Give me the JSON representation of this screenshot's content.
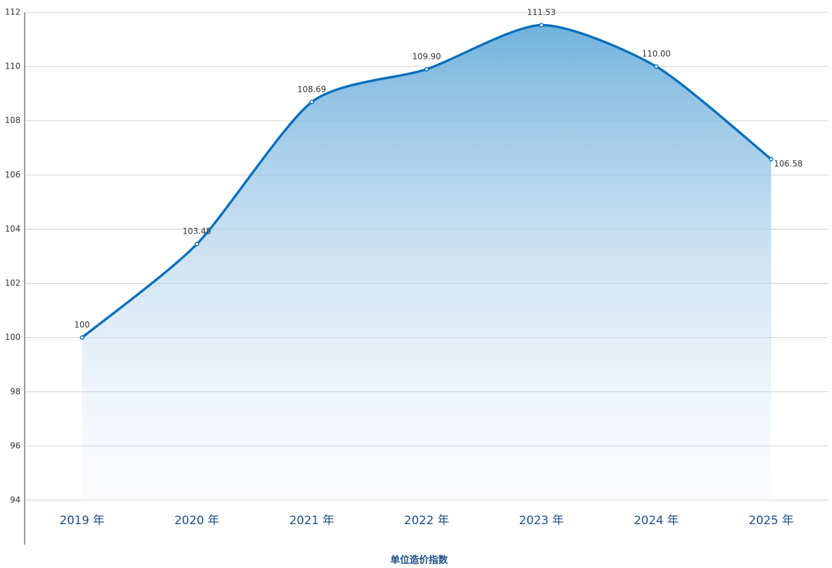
{
  "chart_data": {
    "type": "area",
    "x_label": "单位造价指数",
    "categories": [
      "2019 年",
      "2020 年",
      "2021 年",
      "2022 年",
      "2023 年",
      "2024 年",
      "2025 年"
    ],
    "values": [
      100,
      103.45,
      108.69,
      109.9,
      111.53,
      110.0,
      106.58
    ],
    "value_labels": [
      "100",
      "103.45",
      "108.69",
      "109.90",
      "111.53",
      "110.00",
      "106.58"
    ],
    "color": "#0a6fba",
    "ylim": [
      94,
      112
    ],
    "yticks": [
      94,
      96,
      98,
      100,
      102,
      104,
      106,
      108,
      110,
      112
    ],
    "grid": true
  }
}
